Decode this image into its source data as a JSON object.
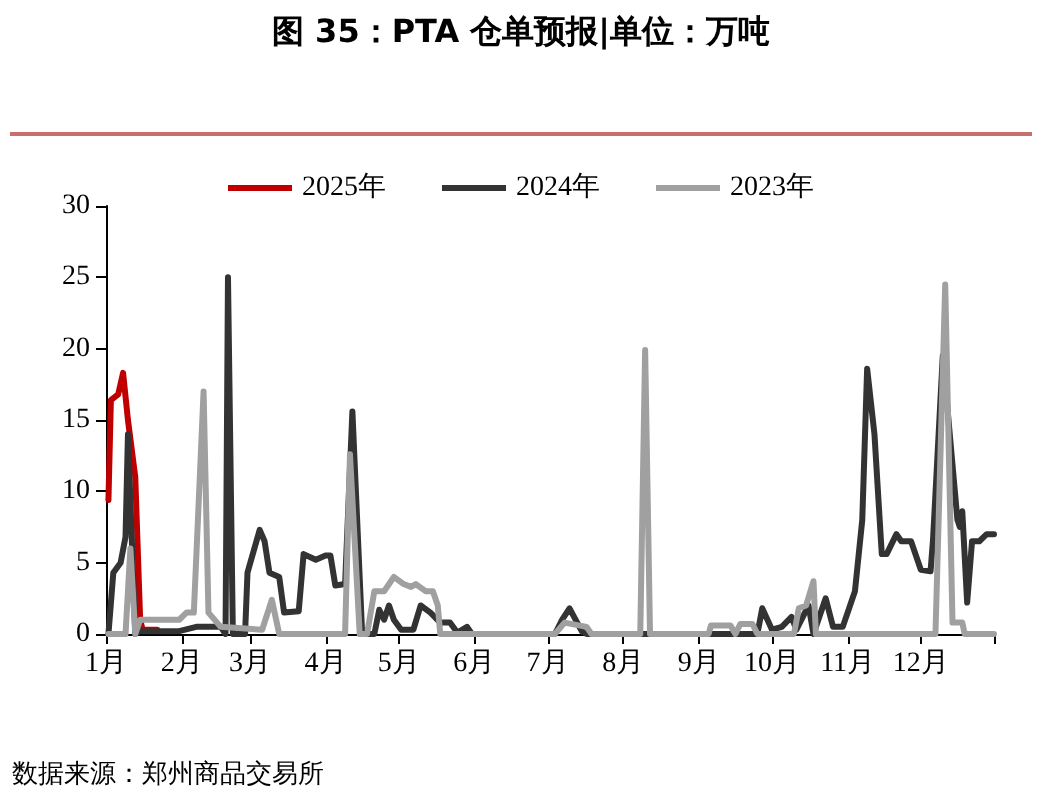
{
  "chart_data": {
    "type": "line",
    "title": "图 35：PTA 仓单预报|单位：万吨",
    "annotations": [
      "数据来源：郑州商品交易所"
    ],
    "xlim": [
      "--01-01",
      "--12-31"
    ],
    "xticks": [
      {
        "value": "--01-01",
        "label": "1月"
      },
      {
        "value": "--02-01",
        "label": "2月"
      },
      {
        "value": "--03-01",
        "label": "3月"
      },
      {
        "value": "--04-01",
        "label": "4月"
      },
      {
        "value": "--05-01",
        "label": "5月"
      },
      {
        "value": "--06-01",
        "label": "6月"
      },
      {
        "value": "--07-01",
        "label": "7月"
      },
      {
        "value": "--08-01",
        "label": "8月"
      },
      {
        "value": "--09-01",
        "label": "9月"
      },
      {
        "value": "--10-01",
        "label": "10月"
      },
      {
        "value": "--11-01",
        "label": "11月"
      },
      {
        "value": "--12-01",
        "label": "12月"
      }
    ],
    "ylim": [
      0,
      30
    ],
    "yticks": [
      0,
      5,
      10,
      15,
      20,
      25,
      30
    ],
    "grid": false,
    "legend": "top",
    "marker": "none",
    "line_style": "solid",
    "series": [
      {
        "name": "2025年",
        "color": "#c00000",
        "x": [
          "--01-02",
          "--01-03",
          "--01-06",
          "--01-08",
          "--01-10",
          "--01-13",
          "--01-15",
          "--01-16",
          "--01-22"
        ],
        "values": [
          9.4,
          16.4,
          16.8,
          18.3,
          15,
          11,
          1,
          0.3,
          0.3
        ]
      },
      {
        "name": "2024年",
        "color": "#333333",
        "x": [
          "--01-02",
          "--01-04",
          "--01-07",
          "--01-09",
          "--01-10",
          "--01-13",
          "--01-15",
          "--01-31",
          "--02-07",
          "--02-17",
          "--02-19",
          "--02-20",
          "--02-22",
          "--02-27",
          "--02-28",
          "--03-05",
          "--03-07",
          "--03-09",
          "--03-13",
          "--03-15",
          "--03-21",
          "--03-23",
          "--03-28",
          "--04-01",
          "--04-03",
          "--04-05",
          "--04-09",
          "--04-12",
          "--04-16",
          "--04-21",
          "--04-23",
          "--04-25",
          "--04-27",
          "--04-29",
          "--05-02",
          "--05-07",
          "--05-10",
          "--05-14",
          "--05-18",
          "--05-22",
          "--05-25",
          "--05-29",
          "--05-31",
          "--07-04",
          "--07-07",
          "--07-10",
          "--07-15",
          "--07-17",
          "--09-25",
          "--09-27",
          "--10-01",
          "--10-05",
          "--10-09",
          "--10-11",
          "--10-16",
          "--10-18",
          "--10-23",
          "--10-26",
          "--10-30",
          "--11-02",
          "--11-04",
          "--11-07",
          "--11-09",
          "--11-12",
          "--11-15",
          "--11-17",
          "--11-21",
          "--11-23",
          "--11-27",
          "--12-01",
          "--12-05",
          "--12-06",
          "--12-10",
          "--12-16",
          "--12-17",
          "--12-18",
          "--12-20",
          "--12-22",
          "--12-25",
          "--12-28",
          "--12-31"
        ],
        "values": [
          0,
          4.3,
          5,
          6.8,
          14,
          0,
          0.2,
          0.2,
          0.5,
          0.5,
          0,
          25,
          0,
          0,
          4.3,
          7.3,
          6.5,
          4.3,
          4,
          1.5,
          1.6,
          5.6,
          5.2,
          5.5,
          5.5,
          3.4,
          3.5,
          15.6,
          0,
          0,
          1.7,
          1,
          2,
          1,
          0.3,
          0.3,
          2,
          1.5,
          0.8,
          0.8,
          0.1,
          0.5,
          0,
          0,
          1,
          1.8,
          0.2,
          0,
          0,
          1.8,
          0.3,
          0.5,
          1.2,
          0.3,
          2,
          0,
          2.5,
          0.5,
          0.5,
          2,
          3,
          8,
          18.6,
          14,
          5.6,
          5.6,
          7,
          6.5,
          6.5,
          4.5,
          4.4,
          6.6,
          19.5,
          8,
          7.5,
          8.6,
          2.2,
          6.5,
          6.5,
          7,
          7
        ]
      },
      {
        "name": "2023年",
        "color": "#a0a0a0",
        "x": [
          "--01-02",
          "--01-09",
          "--01-11",
          "--01-13",
          "--01-15",
          "--01-31",
          "--02-03",
          "--02-06",
          "--02-10",
          "--02-12",
          "--02-17",
          "--03-06",
          "--03-10",
          "--03-13",
          "--04-09",
          "--04-11",
          "--04-15",
          "--04-18",
          "--04-21",
          "--04-25",
          "--04-29",
          "--05-03",
          "--05-06",
          "--05-08",
          "--05-12",
          "--05-15",
          "--05-17",
          "--05-18",
          "--07-04",
          "--07-08",
          "--07-17",
          "--07-19",
          "--08-08",
          "--08-10",
          "--08-12",
          "--09-05",
          "--09-06",
          "--09-14",
          "--09-16",
          "--09-18",
          "--09-23",
          "--09-25",
          "--10-10",
          "--10-12",
          "--10-15",
          "--10-18",
          "--10-19",
          "--12-07",
          "--12-11",
          "--12-14",
          "--12-18",
          "--12-19",
          "--12-31"
        ],
        "values": [
          0,
          0,
          6,
          0,
          1,
          1,
          1.5,
          1.5,
          17,
          1.5,
          0.5,
          0.3,
          2.4,
          0,
          0,
          12.6,
          0,
          0,
          3,
          3,
          4,
          3.5,
          3.3,
          3.5,
          3,
          3,
          2,
          0,
          0,
          0.8,
          0.5,
          0,
          0,
          19.9,
          0,
          0,
          0.6,
          0.6,
          0,
          0.7,
          0.7,
          0,
          0,
          1.8,
          2,
          3.7,
          0,
          0,
          24.5,
          0.8,
          0.8,
          0,
          0
        ]
      }
    ]
  }
}
